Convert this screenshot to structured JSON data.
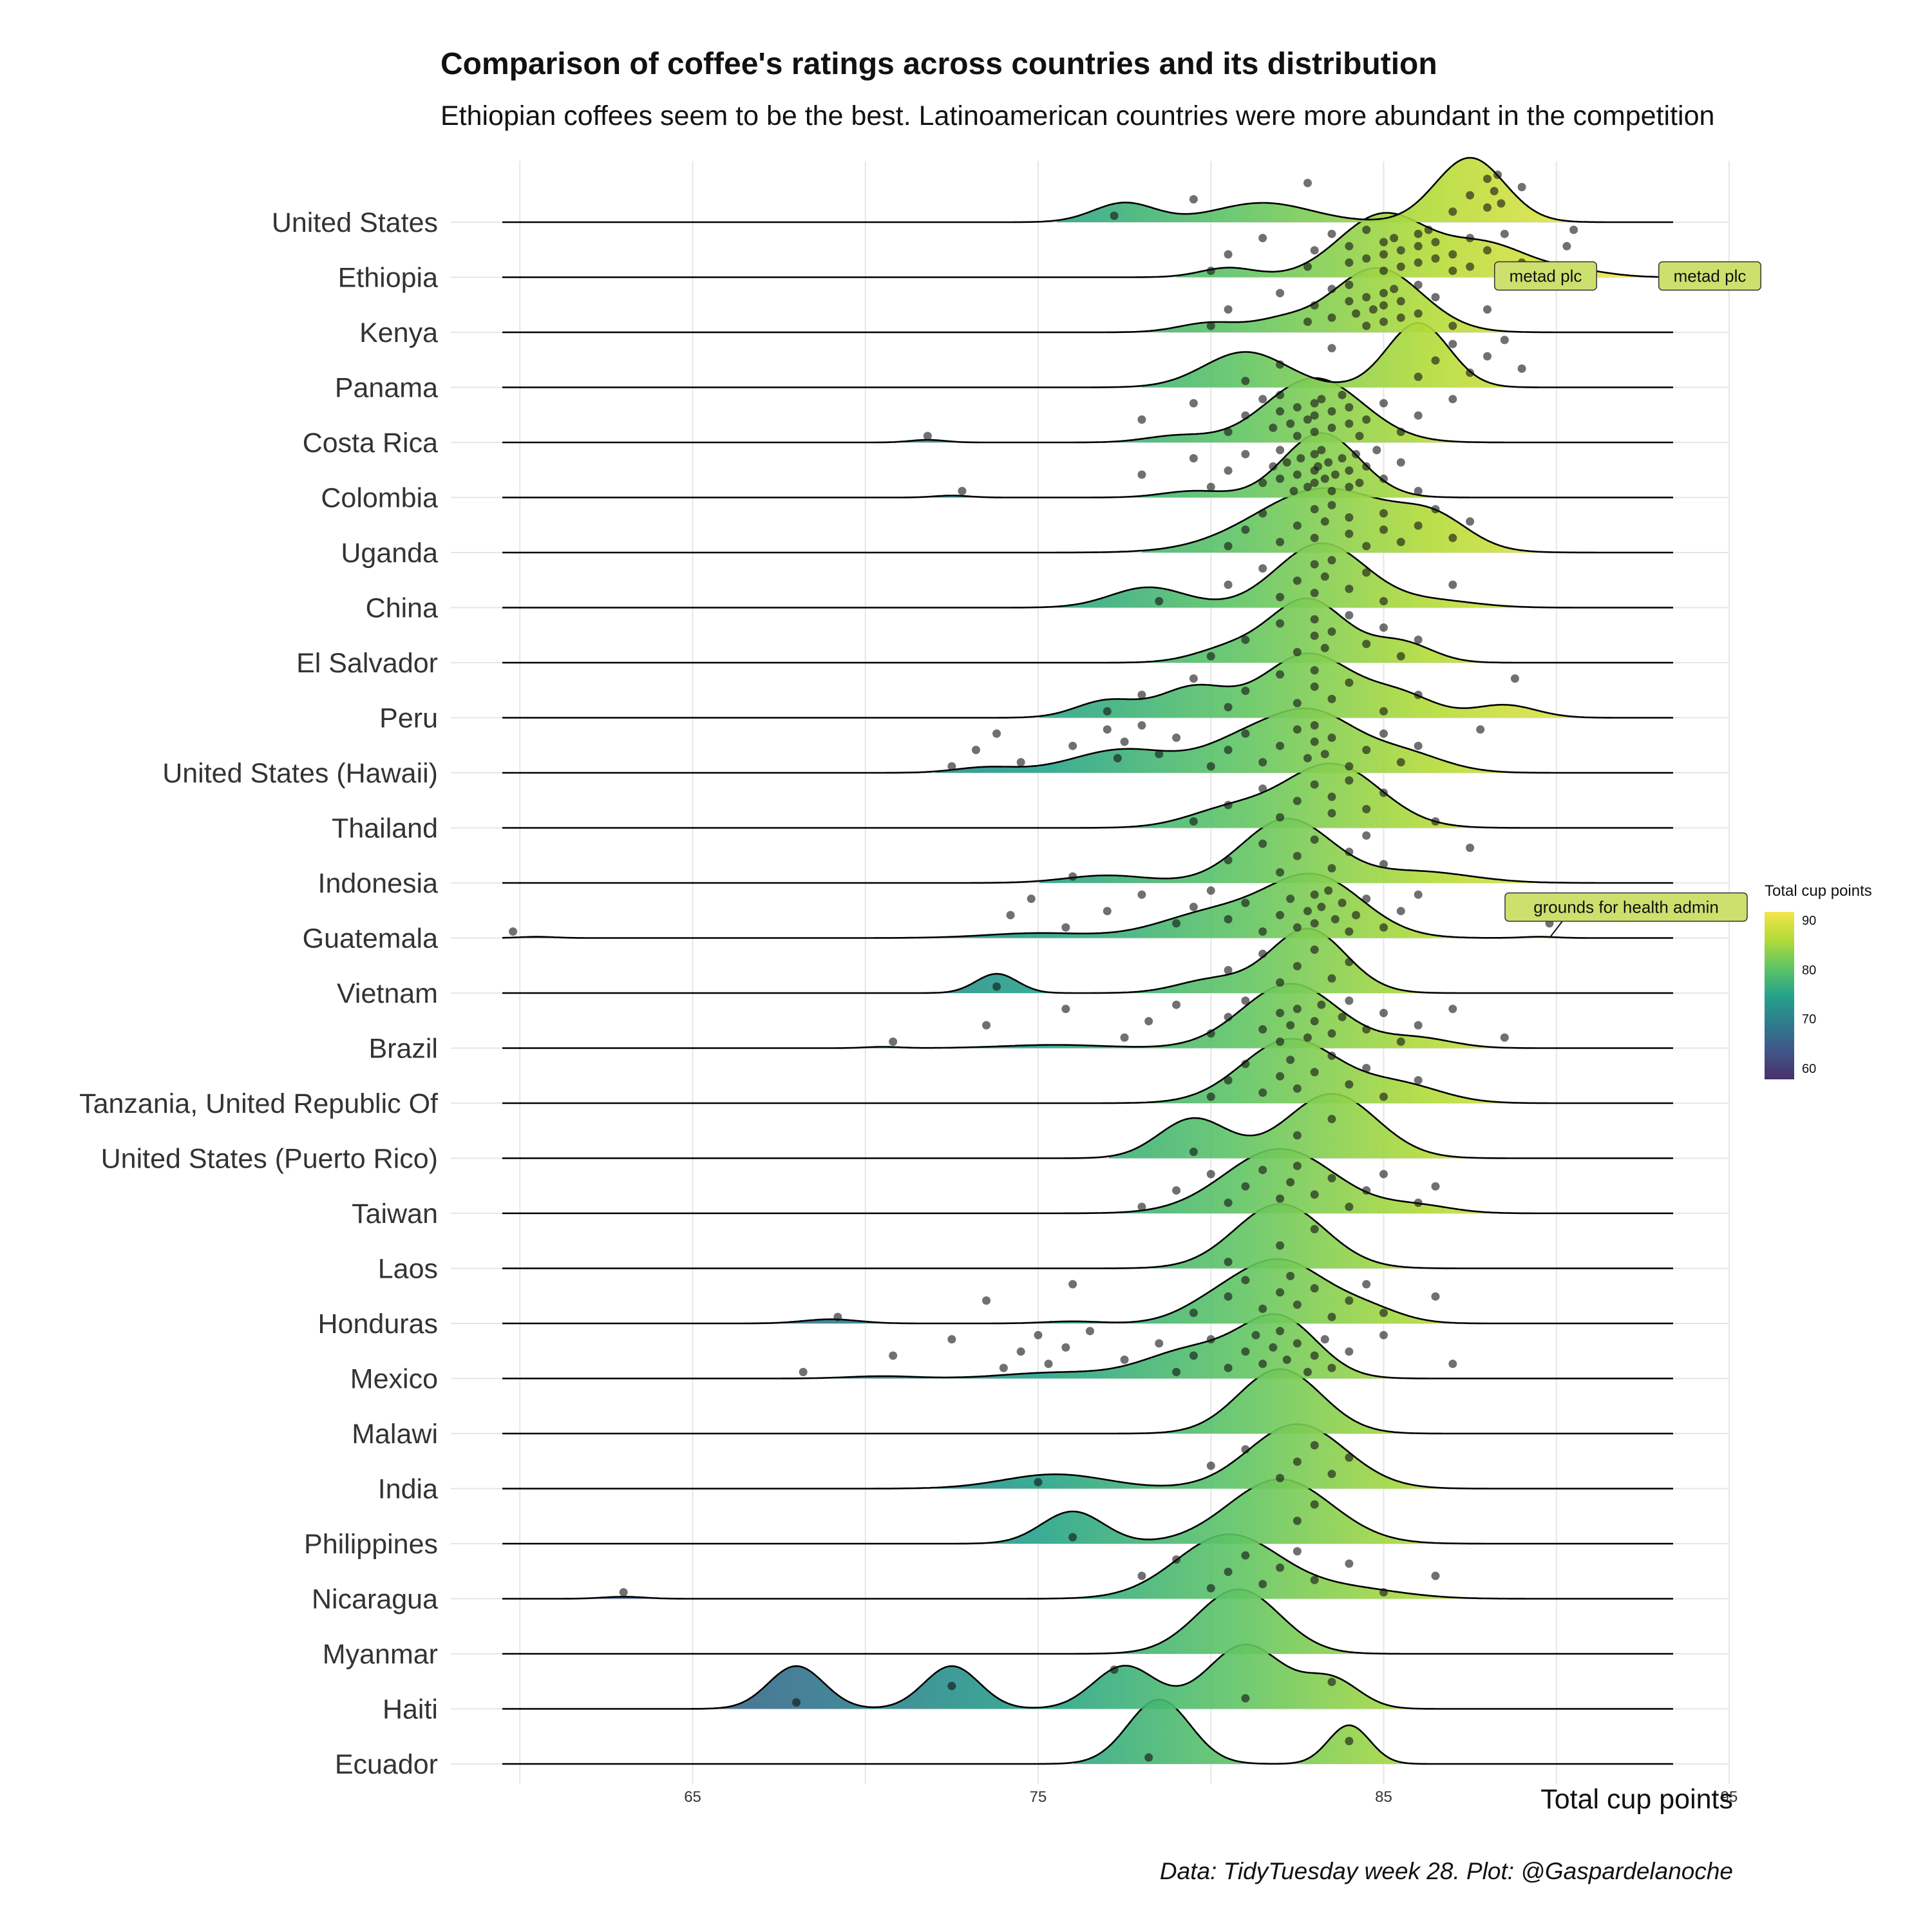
{
  "chart_data": {
    "type": "ridgeline",
    "title": "Comparison of coffee's ratings across countries and its distribution",
    "subtitle": "Ethiopian coffees seem to be the best. Latinoamerican countries were more abundant in the competition",
    "xlabel": "Total cup points",
    "caption": "Data: TidyTuesday week 28. Plot: @Gaspardelanoche",
    "xlim": [
      58,
      95
    ],
    "x_ticks": [
      65,
      75,
      85,
      95
    ],
    "legend": {
      "title": "Total cup points",
      "position": "right",
      "ticks": [
        60,
        70,
        80,
        90
      ],
      "range": [
        58,
        92
      ],
      "palette": [
        "#49306b",
        "#3f5688",
        "#2f7b8d",
        "#25a38a",
        "#5ec465",
        "#b3db38",
        "#f3e54b"
      ]
    },
    "series": [
      {
        "name": "United States",
        "range": [
          75.5,
          93.5
        ],
        "peaks": [
          [
            77.5,
            0.3,
            0.9
          ],
          [
            81.5,
            0.3,
            1.4
          ],
          [
            87.5,
            1.0,
            1.0
          ]
        ],
        "points": [
          77.2,
          79.5,
          82.8,
          87,
          87.5,
          88,
          88,
          88.2,
          88.3,
          88.4,
          89
        ]
      },
      {
        "name": "Ethiopia",
        "range": [
          79,
          93.5
        ],
        "peaks": [
          [
            80.5,
            0.15,
            0.8
          ],
          [
            85,
            1.0,
            1.3
          ],
          [
            88,
            0.5,
            1.2
          ],
          [
            90.5,
            0.1,
            1.0
          ]
        ],
        "points": [
          80,
          80.5,
          81.5,
          82.8,
          83,
          83.5,
          84,
          84,
          84.5,
          84.5,
          85,
          85,
          85,
          85.3,
          85.5,
          85.5,
          86,
          86,
          86,
          86.3,
          86.5,
          86.5,
          87,
          87,
          87.5,
          87.5,
          88,
          88.5,
          89,
          90.3,
          90.5
        ]
      },
      {
        "name": "Kenya",
        "range": [
          78,
          93.5
        ],
        "peaks": [
          [
            80,
            0.15,
            0.9
          ],
          [
            82,
            0.15,
            0.8
          ],
          [
            84.8,
            1.0,
            1.3
          ]
        ],
        "points": [
          80,
          80.5,
          82,
          82.8,
          83,
          83.5,
          83.5,
          84,
          84,
          84.2,
          84.5,
          84.5,
          84.7,
          85,
          85,
          85,
          85.3,
          85.5,
          85.5,
          86,
          86,
          86.5,
          87,
          88
        ]
      },
      {
        "name": "Panama",
        "range": [
          78,
          93.5
        ],
        "peaks": [
          [
            81,
            0.55,
            1.2
          ],
          [
            86,
            1.0,
            0.9
          ]
        ],
        "points": [
          81,
          82,
          83.5,
          86,
          86.5,
          87,
          87.5,
          88,
          88.5,
          89
        ]
      },
      {
        "name": "Costa Rica",
        "range": [
          58,
          93.5
        ],
        "peaks": [
          [
            71.8,
            0.04,
            0.5
          ],
          [
            79,
            0.1,
            0.9
          ],
          [
            83,
            1.0,
            1.4
          ]
        ],
        "points": [
          71.8,
          78,
          79.5,
          80.5,
          81,
          81.5,
          81.8,
          82,
          82,
          82.3,
          82.5,
          82.5,
          82.8,
          83,
          83,
          83,
          83.2,
          83.5,
          83.5,
          83.8,
          84,
          84,
          84.3,
          84.5,
          85,
          85.5,
          86,
          87
        ]
      },
      {
        "name": "Colombia",
        "range": [
          58,
          93.5
        ],
        "peaks": [
          [
            72.5,
            0.03,
            0.5
          ],
          [
            79.5,
            0.1,
            0.9
          ],
          [
            83.2,
            1.0,
            1.1
          ]
        ],
        "points": [
          72.8,
          78,
          79.5,
          80,
          80.5,
          81,
          81.5,
          81.8,
          82,
          82,
          82.2,
          82.4,
          82.5,
          82.6,
          82.8,
          83,
          83,
          83,
          83.1,
          83.2,
          83.3,
          83.4,
          83.5,
          83.6,
          83.8,
          84,
          84,
          84.2,
          84.3,
          84.5,
          84.8,
          85,
          85.5,
          86
        ]
      },
      {
        "name": "Uganda",
        "range": [
          78,
          93.5
        ],
        "peaks": [
          [
            83.3,
            0.9,
            2.0
          ],
          [
            86.5,
            0.35,
            1.0
          ]
        ],
        "points": [
          80.5,
          81,
          81.5,
          82,
          82.5,
          83,
          83,
          83.3,
          83.5,
          84,
          84,
          84.5,
          85,
          85,
          85.5,
          86,
          86.5,
          87,
          87.5
        ]
      },
      {
        "name": "China",
        "range": [
          75,
          93.5
        ],
        "peaks": [
          [
            78.2,
            0.3,
            1.1
          ],
          [
            83.2,
            0.95,
            1.3
          ],
          [
            86.5,
            0.1,
            1.2
          ]
        ],
        "points": [
          78.5,
          80.5,
          81.5,
          82,
          82.5,
          83,
          83,
          83.3,
          83.5,
          84,
          84.5,
          85,
          87
        ]
      },
      {
        "name": "El Salvador",
        "range": [
          78,
          93.5
        ],
        "peaks": [
          [
            80.5,
            0.2,
            1.0
          ],
          [
            82.8,
            0.95,
            1.1
          ],
          [
            85.5,
            0.3,
            0.9
          ]
        ],
        "points": [
          80,
          81,
          82,
          82.5,
          83,
          83,
          83.3,
          83.5,
          84,
          84.5,
          85,
          85.5,
          86
        ]
      },
      {
        "name": "Peru",
        "range": [
          75,
          93.5
        ],
        "peaks": [
          [
            77,
            0.2,
            0.9
          ],
          [
            79.5,
            0.35,
            1.0
          ],
          [
            82.8,
            0.75,
            1.3
          ],
          [
            85.5,
            0.25,
            1.0
          ],
          [
            88.5,
            0.15,
            0.9
          ]
        ],
        "points": [
          77,
          78,
          79.5,
          80.5,
          81,
          82,
          82.5,
          83,
          83,
          83.5,
          84,
          85,
          86,
          88.8
        ]
      },
      {
        "name": "United States (Hawaii)",
        "range": [
          72,
          93.5
        ],
        "peaks": [
          [
            73.5,
            0.08,
            0.9
          ],
          [
            77.5,
            0.35,
            1.5
          ],
          [
            81,
            0.45,
            1.2
          ],
          [
            83,
            0.8,
            1.2
          ],
          [
            85.5,
            0.3,
            1.2
          ]
        ],
        "points": [
          72.5,
          73.2,
          73.8,
          74.5,
          76,
          77,
          77.3,
          77.5,
          78,
          78.5,
          79,
          80,
          80.5,
          81,
          81.5,
          82,
          82.5,
          82.8,
          83,
          83,
          83.3,
          83.5,
          84,
          84.5,
          85,
          85.5,
          86,
          87.8
        ]
      },
      {
        "name": "Thailand",
        "range": [
          77,
          93.5
        ],
        "peaks": [
          [
            80.5,
            0.25,
            1.2
          ],
          [
            83.5,
            0.9,
            1.4
          ]
        ],
        "points": [
          79.5,
          80.5,
          81.5,
          82,
          82.5,
          83,
          83.5,
          83.5,
          84,
          84.5,
          85,
          86.5
        ]
      },
      {
        "name": "Indonesia",
        "range": [
          75,
          93.5
        ],
        "peaks": [
          [
            77,
            0.1,
            1.2
          ],
          [
            82.2,
            0.85,
            1.3
          ],
          [
            86,
            0.15,
            1.5
          ]
        ],
        "points": [
          76,
          80.5,
          81.5,
          82,
          82.5,
          83,
          83.5,
          84,
          84.5,
          85,
          87.5
        ]
      },
      {
        "name": "Guatemala",
        "range": [
          58,
          93.5
        ],
        "peaks": [
          [
            60.5,
            0.02,
            0.5
          ],
          [
            75,
            0.08,
            1.5
          ],
          [
            80,
            0.4,
            1.5
          ],
          [
            83,
            1.0,
            1.4
          ],
          [
            89.5,
            0.02,
            0.5
          ]
        ],
        "points": [
          59.8,
          74.2,
          74.8,
          75.8,
          77,
          78,
          79,
          79.5,
          80,
          80.5,
          81,
          81.5,
          82,
          82.3,
          82.5,
          82.8,
          83,
          83,
          83.2,
          83.4,
          83.6,
          83.8,
          84,
          84.2,
          84.5,
          85,
          85.5,
          86,
          89.8
        ]
      },
      {
        "name": "Vietnam",
        "range": [
          72,
          93.5
        ],
        "peaks": [
          [
            73.8,
            0.3,
            0.6
          ],
          [
            80,
            0.2,
            1.0
          ],
          [
            82.8,
            1.0,
            1.1
          ]
        ],
        "points": [
          73.8,
          80.5,
          81.5,
          82,
          82.5,
          83,
          83.5,
          84
        ]
      },
      {
        "name": "Brazil",
        "range": [
          58,
          93.5
        ],
        "peaks": [
          [
            70.5,
            0.02,
            0.5
          ],
          [
            75.5,
            0.05,
            1.5
          ],
          [
            82.3,
            1.0,
            1.4
          ],
          [
            86,
            0.15,
            1.0
          ]
        ],
        "points": [
          70.8,
          73.5,
          75.8,
          77.5,
          78.2,
          79,
          80,
          80.5,
          81,
          81.5,
          82,
          82,
          82.3,
          82.5,
          82.8,
          83,
          83.2,
          83.5,
          83.8,
          84,
          84.5,
          85,
          85.5,
          86,
          87,
          88.5
        ]
      },
      {
        "name": "Tanzania, United Republic Of",
        "range": [
          77,
          93.5
        ],
        "peaks": [
          [
            82.3,
            0.9,
            1.4
          ],
          [
            85.5,
            0.25,
            1.2
          ]
        ],
        "points": [
          80,
          80.5,
          81,
          81.5,
          82,
          82.3,
          82.5,
          83,
          83.5,
          84,
          84.5,
          85,
          86
        ]
      },
      {
        "name": "United States (Puerto Rico)",
        "range": [
          77,
          93.5
        ],
        "peaks": [
          [
            79.5,
            0.4,
            1.0
          ],
          [
            83.5,
            0.65,
            1.3
          ]
        ],
        "points": [
          79.5,
          82.5,
          83.5
        ]
      },
      {
        "name": "Taiwan",
        "range": [
          76,
          93.5
        ],
        "peaks": [
          [
            82,
            0.9,
            1.6
          ],
          [
            86,
            0.1,
            1.0
          ]
        ],
        "points": [
          78,
          79,
          80,
          80.5,
          81,
          81.5,
          82,
          82.3,
          82.5,
          83,
          83.5,
          84,
          84.5,
          85,
          86,
          86.5
        ]
      },
      {
        "name": "Laos",
        "range": [
          77,
          93.5
        ],
        "peaks": [
          [
            82,
            1.0,
            1.3
          ]
        ],
        "points": [
          80.5,
          82,
          83
        ]
      },
      {
        "name": "Honduras",
        "range": [
          65,
          93.5
        ],
        "peaks": [
          [
            69,
            0.06,
            0.8
          ],
          [
            76,
            0.03,
            0.8
          ],
          [
            80,
            0.2,
            1.0
          ],
          [
            82,
            0.9,
            1.3
          ],
          [
            84.5,
            0.2,
            1.0
          ]
        ],
        "points": [
          69.2,
          73.5,
          76,
          79.5,
          80.5,
          81,
          81.5,
          82,
          82.3,
          82.5,
          83,
          83.5,
          84,
          84.5,
          85,
          86.5
        ]
      },
      {
        "name": "Mexico",
        "range": [
          65,
          93.5
        ],
        "peaks": [
          [
            70.5,
            0.04,
            1.0
          ],
          [
            75.5,
            0.1,
            1.5
          ],
          [
            79.5,
            0.5,
            1.4
          ],
          [
            82,
            1.0,
            1.1
          ]
        ],
        "points": [
          68.2,
          70.8,
          72.5,
          74,
          74.5,
          75,
          75.3,
          75.8,
          76.5,
          77.5,
          78.5,
          79,
          79.5,
          80,
          80.5,
          81,
          81.3,
          81.5,
          81.8,
          82,
          82.2,
          82.5,
          82.8,
          83,
          83.3,
          83.5,
          84,
          85,
          87
        ]
      },
      {
        "name": "Malawi",
        "range": [
          77,
          93.5
        ],
        "peaks": [
          [
            82,
            1.0,
            1.2
          ]
        ],
        "points": []
      },
      {
        "name": "India",
        "range": [
          72,
          93.5
        ],
        "peaks": [
          [
            75.5,
            0.2,
            1.5
          ],
          [
            82.5,
            0.9,
            1.4
          ]
        ],
        "points": [
          75,
          80,
          81,
          82,
          82.5,
          83,
          83.5,
          84
        ]
      },
      {
        "name": "Philippines",
        "range": [
          72,
          93.5
        ],
        "peaks": [
          [
            76,
            0.4,
            0.9
          ],
          [
            82,
            0.8,
            1.5
          ]
        ],
        "points": [
          76,
          82.5,
          83
        ]
      },
      {
        "name": "Nicaragua",
        "range": [
          58,
          93.5
        ],
        "peaks": [
          [
            63,
            0.03,
            0.6
          ],
          [
            80.5,
            0.95,
            1.5
          ],
          [
            84,
            0.15,
            1.5
          ]
        ],
        "points": [
          63,
          78,
          79,
          80,
          80.5,
          81,
          81.5,
          82,
          82.5,
          83,
          84,
          85,
          86.5
        ]
      },
      {
        "name": "Myanmar",
        "range": [
          77,
          93.5
        ],
        "peaks": [
          [
            80.8,
            1.0,
            1.2
          ]
        ],
        "points": []
      },
      {
        "name": "Haiti",
        "range": [
          64,
          93.5
        ],
        "peaks": [
          [
            68,
            0.3,
            0.8
          ],
          [
            72.5,
            0.3,
            0.8
          ],
          [
            77.5,
            0.3,
            0.9
          ],
          [
            81,
            0.45,
            1.1
          ],
          [
            83.5,
            0.2,
            0.8
          ]
        ],
        "points": [
          68,
          72.5,
          77.2,
          81,
          83.5
        ]
      },
      {
        "name": "Ecuador",
        "range": [
          76,
          93.5
        ],
        "peaks": [
          [
            78.5,
            1.0,
            0.9
          ],
          [
            84,
            0.6,
            0.6
          ]
        ],
        "points": [
          78.2,
          84
        ]
      }
    ],
    "annotations": [
      {
        "text": "metad plc",
        "series": "Ethiopia",
        "x": 89.5
      },
      {
        "text": "metad plc",
        "series": "Ethiopia",
        "x": 90.5
      },
      {
        "text": "grounds for health admin",
        "series": "Guatemala",
        "x": 89.8
      }
    ]
  }
}
